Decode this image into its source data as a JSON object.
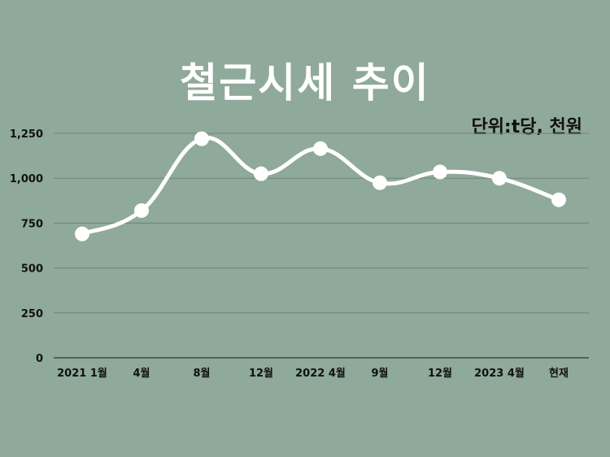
{
  "title": "철근시세 추이",
  "unit_label": "단위:t당, 천원",
  "colors": {
    "background": "#8fa99a",
    "line": "#ffffff",
    "grid": "#6f8577",
    "axis": "#333333",
    "text": "#111111"
  },
  "chart_data": {
    "type": "line",
    "categories": [
      "2021 1월",
      "4월",
      "8월",
      "12월",
      "2022 4월",
      "9월",
      "12월",
      "2023 4월",
      "현재"
    ],
    "values": [
      690,
      820,
      1220,
      1025,
      1165,
      975,
      1035,
      1000,
      880
    ],
    "ylim": [
      0,
      1250
    ],
    "yticks": [
      0,
      250,
      500,
      750,
      1000,
      1250
    ],
    "ytick_labels": [
      "0",
      "250",
      "500",
      "750",
      "1,000",
      "1,250"
    ],
    "grid": true,
    "smooth": true,
    "markers": true
  }
}
